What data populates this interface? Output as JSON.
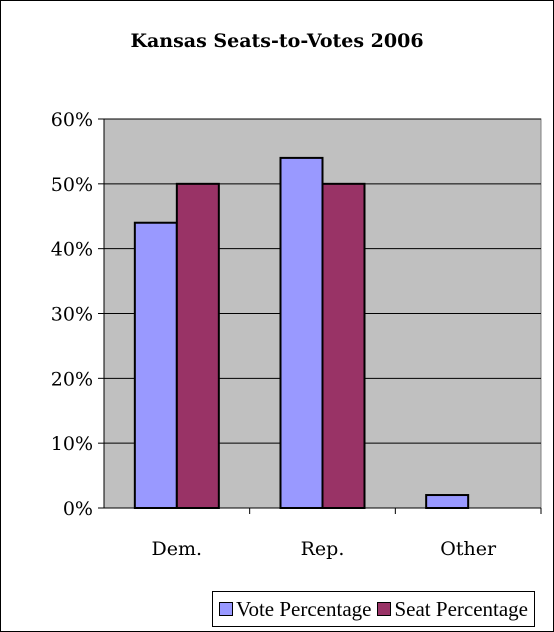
{
  "chart_data": {
    "type": "bar",
    "title": "Kansas Seats-to-Votes 2006",
    "categories": [
      "Dem.",
      "Rep.",
      "Other"
    ],
    "series": [
      {
        "name": "Vote Percentage",
        "values": [
          44,
          54,
          2
        ],
        "color": "#9999ff"
      },
      {
        "name": "Seat Percentage",
        "values": [
          50,
          50,
          0
        ],
        "color": "#993366"
      }
    ],
    "ylim": [
      0,
      60
    ],
    "yticks": [
      0,
      10,
      20,
      30,
      40,
      50,
      60
    ],
    "ytick_labels": [
      "0%",
      "10%",
      "20%",
      "30%",
      "40%",
      "50%",
      "60%"
    ],
    "grid": true,
    "legend_position": "bottom",
    "plot_background": "#c0c0c0"
  }
}
